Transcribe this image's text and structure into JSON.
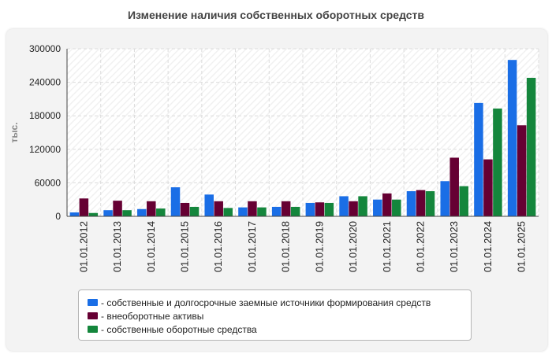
{
  "chart_data": {
    "type": "bar",
    "title": "Изменение наличия собственных оборотных средств",
    "ylabel": "тыс.",
    "xlabel": "",
    "ylim": [
      0,
      300000
    ],
    "yticks": [
      0,
      60000,
      120000,
      180000,
      240000,
      300000
    ],
    "grid": true,
    "legend_position": "bottom",
    "categories": [
      "01.01.2012",
      "01.01.2013",
      "01.01.2014",
      "01.01.2015",
      "01.01.2016",
      "01.01.2017",
      "01.01.2018",
      "01.01.2019",
      "01.01.2020",
      "01.01.2021",
      "01.01.2022",
      "01.01.2023",
      "01.01.2024",
      "01.01.2025"
    ],
    "series": [
      {
        "name": "собственные и долгосрочные заемные источники формирования средств",
        "color": "#1a6ee6",
        "values": [
          7000,
          11000,
          13000,
          52000,
          39000,
          16000,
          17000,
          24000,
          36000,
          30000,
          45000,
          63000,
          203000,
          280000
        ]
      },
      {
        "name": "внеоборотные активы",
        "color": "#660033",
        "values": [
          32000,
          28000,
          27000,
          24000,
          27000,
          27000,
          27000,
          25000,
          27000,
          41000,
          47000,
          105000,
          102000,
          163000
        ]
      },
      {
        "name": "собственные оборотные средства",
        "color": "#14863c",
        "values": [
          6000,
          11000,
          14000,
          17000,
          15000,
          16000,
          17000,
          24000,
          36000,
          30000,
          45000,
          54000,
          193000,
          248000
        ]
      }
    ]
  }
}
